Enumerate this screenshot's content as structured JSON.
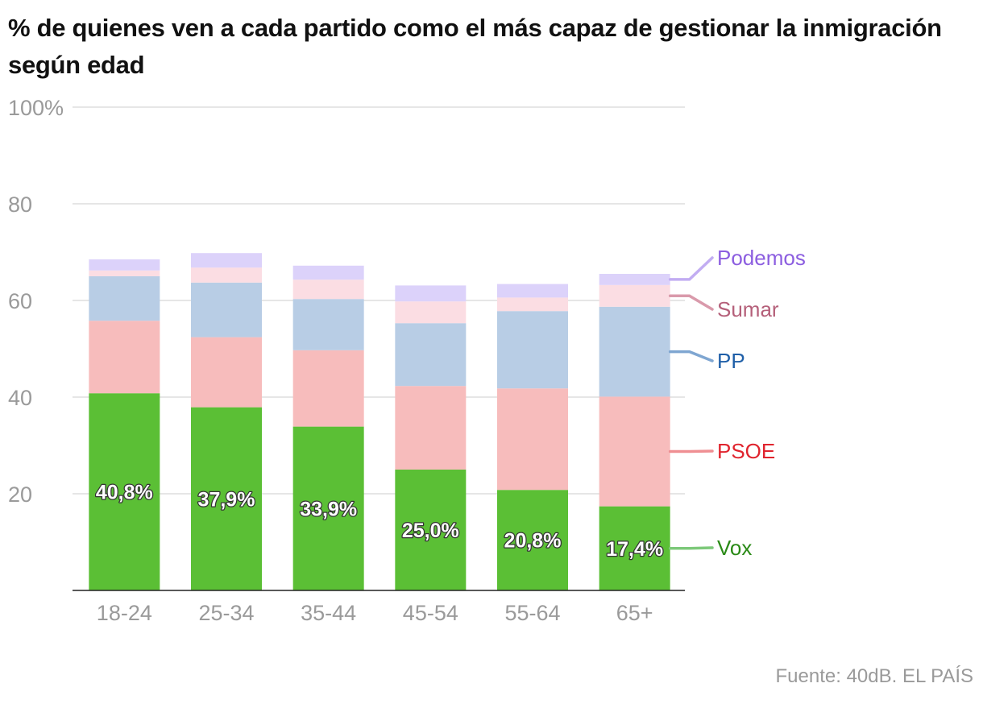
{
  "title": "% de quienes ven a cada partido como el más capaz de gestionar la inmigración según edad",
  "source": "Fuente: 40dB. EL PAÍS",
  "chart_data": {
    "type": "bar",
    "stacked": true,
    "categories": [
      "18-24",
      "25-34",
      "35-44",
      "45-54",
      "55-64",
      "65+"
    ],
    "ylim": [
      0,
      100
    ],
    "yticks": [
      0,
      20,
      40,
      60,
      80,
      100
    ],
    "ytick_labels": [
      "",
      "20",
      "40",
      "60",
      "80",
      "100%"
    ],
    "grid": true,
    "legend_placement": "right",
    "series": [
      {
        "name": "Vox",
        "color": "#5bbf35",
        "label_color": "#2a8a16",
        "line_color": "#7dc97a",
        "values": [
          40.8,
          37.9,
          33.9,
          25.0,
          20.8,
          17.4
        ],
        "value_labels": [
          "40,8%",
          "37,9%",
          "33,9%",
          "25,0%",
          "20,8%",
          "17,4%"
        ]
      },
      {
        "name": "PSOE",
        "color": "#f7bcbc",
        "label_color": "#e0242e",
        "line_color": "#ef8f93",
        "values": [
          15.0,
          14.5,
          15.8,
          17.3,
          21.0,
          22.7
        ]
      },
      {
        "name": "PP",
        "color": "#b8cde5",
        "label_color": "#1f5fa8",
        "line_color": "#7fa6d1",
        "values": [
          9.2,
          11.3,
          10.6,
          13.0,
          16.0,
          18.6
        ]
      },
      {
        "name": "Sumar",
        "color": "#fbdde3",
        "label_color": "#b5607a",
        "line_color": "#d99aab",
        "values": [
          1.2,
          3.1,
          4.0,
          4.5,
          2.8,
          4.5
        ]
      },
      {
        "name": "Podemos",
        "color": "#dcd2fa",
        "label_color": "#8c5ee0",
        "line_color": "#c2adf2",
        "values": [
          2.3,
          3.0,
          2.9,
          3.3,
          2.8,
          2.3
        ]
      }
    ]
  }
}
